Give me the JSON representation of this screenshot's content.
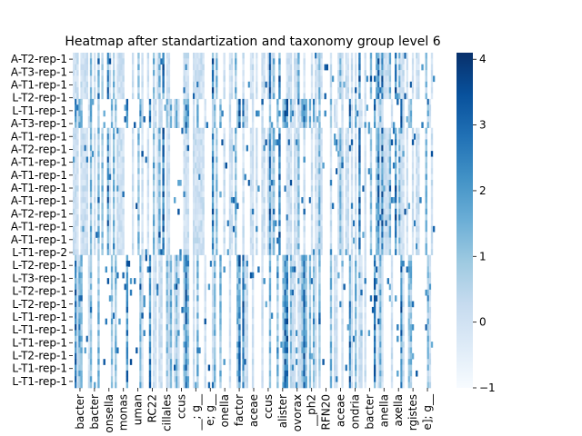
{
  "chart_data": {
    "type": "heatmap",
    "title": "Heatmap after standartization and taxonomy group level 6",
    "xlabel": "",
    "ylabel": "",
    "n_rows": 58,
    "n_cols": 190,
    "value_range": [
      -1,
      4.1
    ],
    "colormap": "Blues",
    "y_tick_labels": [
      "A-T2-rep-1",
      "A-T3-rep-1",
      "A-T1-rep-1",
      "L-T2-rep-1",
      "L-T1-rep-1",
      "A-T3-rep-1",
      "A-T1-rep-1",
      "A-T2-rep-1",
      "A-T1-rep-1",
      "A-T1-rep-1",
      "A-T1-rep-1",
      "A-T1-rep-1",
      "A-T2-rep-1",
      "A-T1-rep-1",
      "A-T1-rep-1",
      "L-T1-rep-2",
      "L-T2-rep-1",
      "L-T3-rep-1",
      "L-T2-rep-1",
      "L-T2-rep-1",
      "L-T1-rep-1",
      "L-T1-rep-1",
      "L-T1-rep-1",
      "L-T2-rep-1",
      "L-T1-rep-1",
      "L-T1-rep-1"
    ],
    "x_tick_labels": [
      "bacter",
      "bacter",
      "onsella",
      "monas",
      "uman",
      "RC22",
      "cillales",
      "ccus",
      "__; g__",
      "e; g__",
      "onella",
      "factor",
      "aceae",
      "ccus",
      "alister",
      "ovorax",
      "__ph2",
      "RFN20",
      "aceae",
      "ondria",
      "bacter",
      "anella",
      "axella",
      "rgistes",
      "e]; g__"
    ],
    "colorbar": {
      "ticks": [
        -1,
        0,
        1,
        2,
        3,
        4
      ]
    }
  }
}
